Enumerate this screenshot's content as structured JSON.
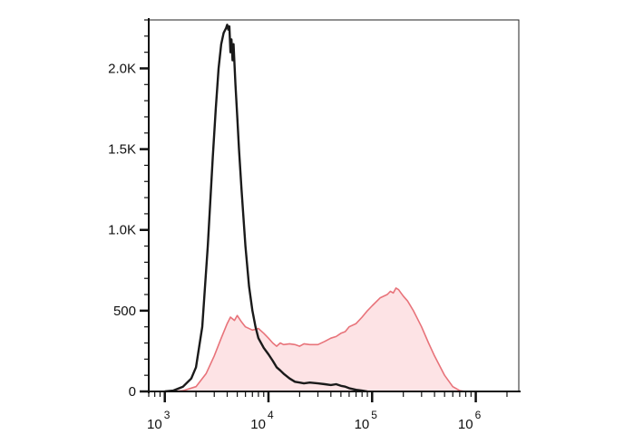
{
  "chart_data": {
    "type": "area",
    "title": "",
    "xlabel": "",
    "ylabel": "",
    "x_scale": "log",
    "xlim": [
      700,
      2600000
    ],
    "ylim": [
      0,
      2300
    ],
    "grid": false,
    "y_ticks": [
      {
        "value": 0,
        "label": "0"
      },
      {
        "value": 500,
        "label": "500"
      },
      {
        "value": 1000,
        "label": "1.0K"
      },
      {
        "value": 1500,
        "label": "1.5K"
      },
      {
        "value": 2000,
        "label": "2.0K"
      }
    ],
    "x_ticks": [
      {
        "value": 1000,
        "base": "10",
        "exp": "3"
      },
      {
        "value": 10000,
        "base": "10",
        "exp": "4"
      },
      {
        "value": 100000,
        "base": "10",
        "exp": "5"
      },
      {
        "value": 1000000,
        "base": "10",
        "exp": "6"
      }
    ],
    "series": [
      {
        "kind": "filled",
        "color": "#e8737a",
        "fill": "#fde3e5",
        "x": [
          1200,
          1500,
          2000,
          2500,
          3000,
          3500,
          4000,
          4300,
          4700,
          5000,
          5500,
          6000,
          7000,
          8000,
          9000,
          10000,
          11000,
          12000,
          13000,
          14000,
          16000,
          18000,
          20000,
          22000,
          25000,
          30000,
          35000,
          40000,
          45000,
          50000,
          55000,
          60000,
          70000,
          80000,
          90000,
          100000,
          120000,
          140000,
          150000,
          160000,
          170000,
          180000,
          190000,
          200000,
          220000,
          250000,
          300000,
          350000,
          400000,
          500000,
          600000,
          700000,
          800000
        ],
        "y": [
          0,
          5,
          30,
          110,
          220,
          330,
          420,
          460,
          440,
          470,
          430,
          400,
          380,
          390,
          360,
          330,
          300,
          280,
          300,
          290,
          295,
          290,
          280,
          295,
          290,
          290,
          310,
          330,
          340,
          360,
          370,
          400,
          420,
          460,
          500,
          530,
          580,
          600,
          620,
          610,
          640,
          630,
          610,
          590,
          560,
          500,
          400,
          300,
          220,
          100,
          30,
          5,
          0
        ]
      },
      {
        "kind": "line",
        "color": "#1a1a1a",
        "x": [
          1000,
          1200,
          1500,
          1800,
          2000,
          2300,
          2600,
          2900,
          3100,
          3300,
          3500,
          3700,
          3900,
          4000,
          4100,
          4200,
          4300,
          4400,
          4500,
          4600,
          4800,
          5000,
          5200,
          5500,
          6000,
          6500,
          7000,
          7500,
          8000,
          9000,
          10000,
          11000,
          12000,
          13000,
          14000,
          16000,
          18000,
          20000,
          22000,
          25000,
          30000,
          35000,
          40000,
          45000,
          50000,
          55000,
          60000,
          70000,
          80000,
          90000
        ],
        "y": [
          0,
          5,
          30,
          80,
          150,
          400,
          900,
          1450,
          1750,
          2000,
          2150,
          2220,
          2250,
          2270,
          2240,
          2260,
          2100,
          2180,
          2050,
          2150,
          1900,
          1700,
          1500,
          1250,
          900,
          650,
          500,
          400,
          330,
          270,
          230,
          190,
          150,
          130,
          110,
          80,
          60,
          55,
          50,
          55,
          50,
          45,
          40,
          45,
          35,
          30,
          20,
          10,
          5,
          0
        ]
      }
    ]
  }
}
